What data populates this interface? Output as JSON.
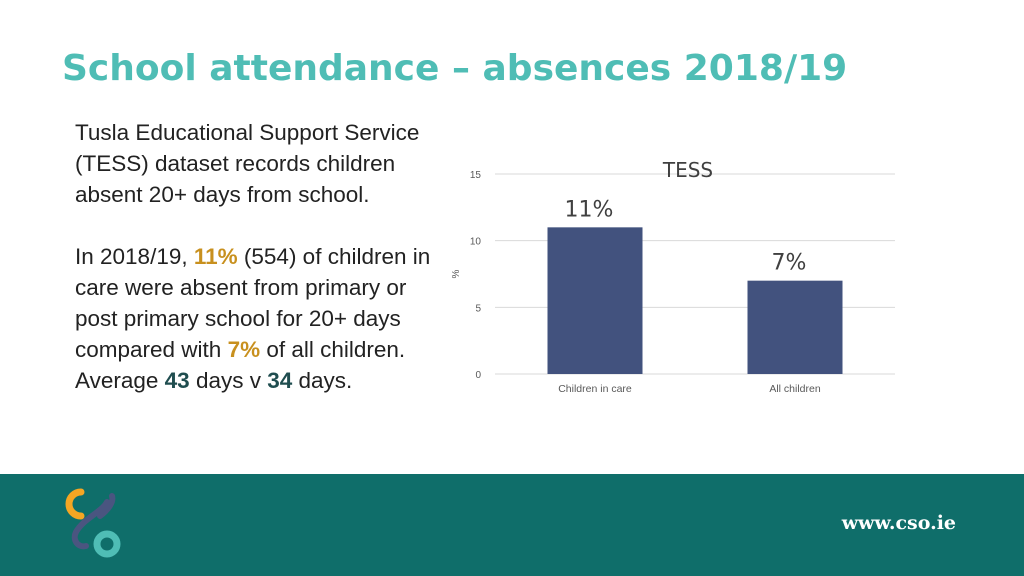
{
  "slide": {
    "title": "School attendance – absences 2018/19",
    "paragraph1": "Tusla Educational Support Service (TESS) dataset records children absent 20+ days from school.",
    "paragraph2": {
      "part1": "In 2018/19, ",
      "highlight1": "11%",
      "part2": " (554) of children in care were absent from primary or post primary school for 20+ days compared with ",
      "highlight2": "7%",
      "part3": " of all children. Average ",
      "highlight3": "43",
      "part4": " days v ",
      "highlight4": "34",
      "part5": " days."
    },
    "colors": {
      "title": "#4fbdb5",
      "highlight_pct": "#c8901e",
      "footer": "#0f6e6a",
      "bar": "#42527e"
    }
  },
  "chart_data": {
    "type": "bar",
    "title": "TESS",
    "categories": [
      "Children in care",
      "All children"
    ],
    "values": [
      11,
      7
    ],
    "data_labels": [
      "11%",
      "7%"
    ],
    "ylabel": "%",
    "xlabel": "",
    "ylim": [
      0,
      15
    ],
    "yticks": [
      "0",
      "5",
      "10",
      "15"
    ],
    "grid": true,
    "legend": "none"
  },
  "footer": {
    "website": "www.cso.ie",
    "logo_icon": "cso-logo-icon"
  }
}
